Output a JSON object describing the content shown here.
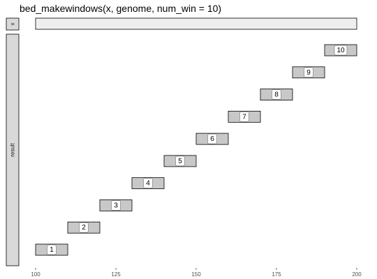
{
  "chart_data": {
    "type": "bar",
    "title": "bed_makewindows(x, genome, num_win = 10)",
    "facets": [
      "x",
      "result"
    ],
    "xlim": [
      100,
      200
    ],
    "x_ticks": [
      100,
      125,
      150,
      175,
      200
    ],
    "colors": {
      "x_fill": "#efefef",
      "window_fill": "#c8c8c8",
      "strip_fill": "#d9d9d9",
      "outline": "#000000",
      "label_fill": "#ffffff",
      "tick": "#4d4d4d"
    },
    "x_interval": {
      "start": 100,
      "end": 200
    },
    "windows": [
      {
        "start": 100,
        "end": 110,
        "label": "1"
      },
      {
        "start": 110,
        "end": 120,
        "label": "2"
      },
      {
        "start": 120,
        "end": 130,
        "label": "3"
      },
      {
        "start": 130,
        "end": 140,
        "label": "4"
      },
      {
        "start": 140,
        "end": 150,
        "label": "5"
      },
      {
        "start": 150,
        "end": 160,
        "label": "6"
      },
      {
        "start": 160,
        "end": 170,
        "label": "7"
      },
      {
        "start": 170,
        "end": 180,
        "label": "8"
      },
      {
        "start": 180,
        "end": 190,
        "label": "9"
      },
      {
        "start": 190,
        "end": 200,
        "label": "10"
      }
    ]
  }
}
